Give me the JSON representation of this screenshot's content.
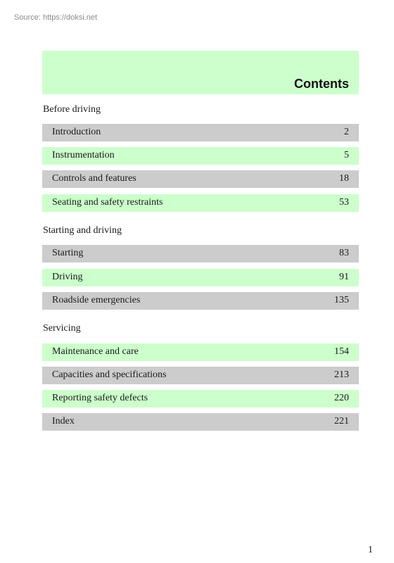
{
  "source": "Source: https://doksi.net",
  "header": {
    "title": "Contents"
  },
  "sections": [
    {
      "title": "Before driving",
      "items": [
        {
          "label": "Introduction",
          "page": "2"
        },
        {
          "label": "Instrumentation",
          "page": "5"
        },
        {
          "label": "Controls and features",
          "page": "18"
        },
        {
          "label": "Seating and safety restraints",
          "page": "53"
        }
      ]
    },
    {
      "title": "Starting and driving",
      "items": [
        {
          "label": "Starting",
          "page": "83"
        },
        {
          "label": "Driving",
          "page": "91"
        },
        {
          "label": "Roadside emergencies",
          "page": "135"
        }
      ]
    },
    {
      "title": "Servicing",
      "items": [
        {
          "label": "Maintenance and care",
          "page": "154"
        },
        {
          "label": "Capacities and specifications",
          "page": "213"
        },
        {
          "label": "Reporting safety defects",
          "page": "220"
        },
        {
          "label": "Index",
          "page": "221"
        }
      ]
    }
  ],
  "footer": {
    "page_number": "1"
  },
  "colors": {
    "green_band": "#ccffcc",
    "gray_band": "#cccccc"
  }
}
